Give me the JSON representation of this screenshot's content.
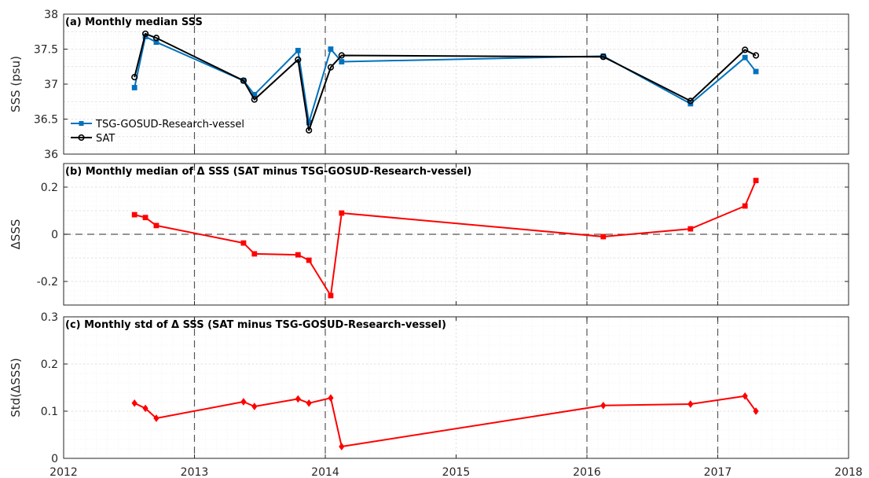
{
  "chart_data": [
    {
      "type": "line",
      "title": "(a) Monthly median SSS",
      "xlabel": "",
      "ylabel": "SSS (psu)",
      "xlim": [
        2012,
        2018
      ],
      "ylim": [
        36,
        38
      ],
      "yticks": [
        "36",
        "36.5",
        "37",
        "37.5",
        "38"
      ],
      "grid": true,
      "legend": "left",
      "series": [
        {
          "name": "TSG-GOSUD-Research-vessel",
          "color": "#0072BD",
          "x": [
            "2012-07",
            "2012-08",
            "2012-09",
            "2013-05",
            "2013-06",
            "2013-10",
            "2013-11",
            "2014-01",
            "2014-02",
            "2016-02",
            "2016-10",
            "2017-03",
            "2017-04"
          ],
          "y": [
            36.95,
            37.68,
            37.6,
            37.05,
            36.85,
            37.48,
            36.45,
            37.5,
            37.32,
            37.4,
            36.72,
            37.38,
            37.18
          ]
        },
        {
          "name": "SAT",
          "color": "#000000",
          "x": [
            "2012-07",
            "2012-08",
            "2012-09",
            "2013-05",
            "2013-06",
            "2013-10",
            "2013-11",
            "2014-01",
            "2014-02",
            "2016-02",
            "2016-10",
            "2017-03",
            "2017-04"
          ],
          "y": [
            37.1,
            37.72,
            37.66,
            37.05,
            36.78,
            37.35,
            36.34,
            37.24,
            37.41,
            37.39,
            36.76,
            37.49,
            37.41
          ]
        }
      ]
    },
    {
      "type": "line",
      "title": "(b) Monthly median of Δ SSS (SAT minus TSG-GOSUD-Research-vessel)",
      "xlabel": "",
      "ylabel": "ΔSSS",
      "xlim": [
        2012,
        2018
      ],
      "ylim": [
        -0.3,
        0.3
      ],
      "yticks": [
        "-0.2",
        "0",
        "0.2"
      ],
      "grid": true,
      "series": [
        {
          "color": "#FF0000",
          "x": [
            "2012-07",
            "2012-08",
            "2012-09",
            "2013-05",
            "2013-06",
            "2013-10",
            "2013-11",
            "2014-01",
            "2014-02",
            "2016-02",
            "2016-10",
            "2017-03",
            "2017-04"
          ],
          "y": [
            0.083,
            0.071,
            0.037,
            -0.037,
            -0.083,
            -0.087,
            -0.11,
            -0.26,
            0.09,
            -0.01,
            0.023,
            0.12,
            0.228
          ]
        }
      ]
    },
    {
      "type": "line",
      "title": "(c) Monthly std of Δ SSS (SAT minus TSG-GOSUD-Research-vessel)",
      "xlabel": "",
      "ylabel": "Std(ΔSSS)",
      "xlim": [
        2012,
        2018
      ],
      "ylim": [
        0,
        0.3
      ],
      "yticks": [
        "0",
        "0.1",
        "0.2",
        "0.3"
      ],
      "xticks": [
        "2012",
        "2013",
        "2014",
        "2015",
        "2016",
        "2017",
        "2018"
      ],
      "grid": true,
      "series": [
        {
          "color": "#FF0000",
          "x": [
            "2012-07",
            "2012-08",
            "2012-09",
            "2013-05",
            "2013-06",
            "2013-10",
            "2013-11",
            "2014-01",
            "2014-02",
            "2016-02",
            "2016-10",
            "2017-03",
            "2017-04"
          ],
          "y": [
            0.117,
            0.106,
            0.085,
            0.12,
            0.11,
            0.126,
            0.117,
            0.128,
            0.025,
            0.112,
            0.115,
            0.132,
            0.1
          ]
        }
      ]
    }
  ]
}
